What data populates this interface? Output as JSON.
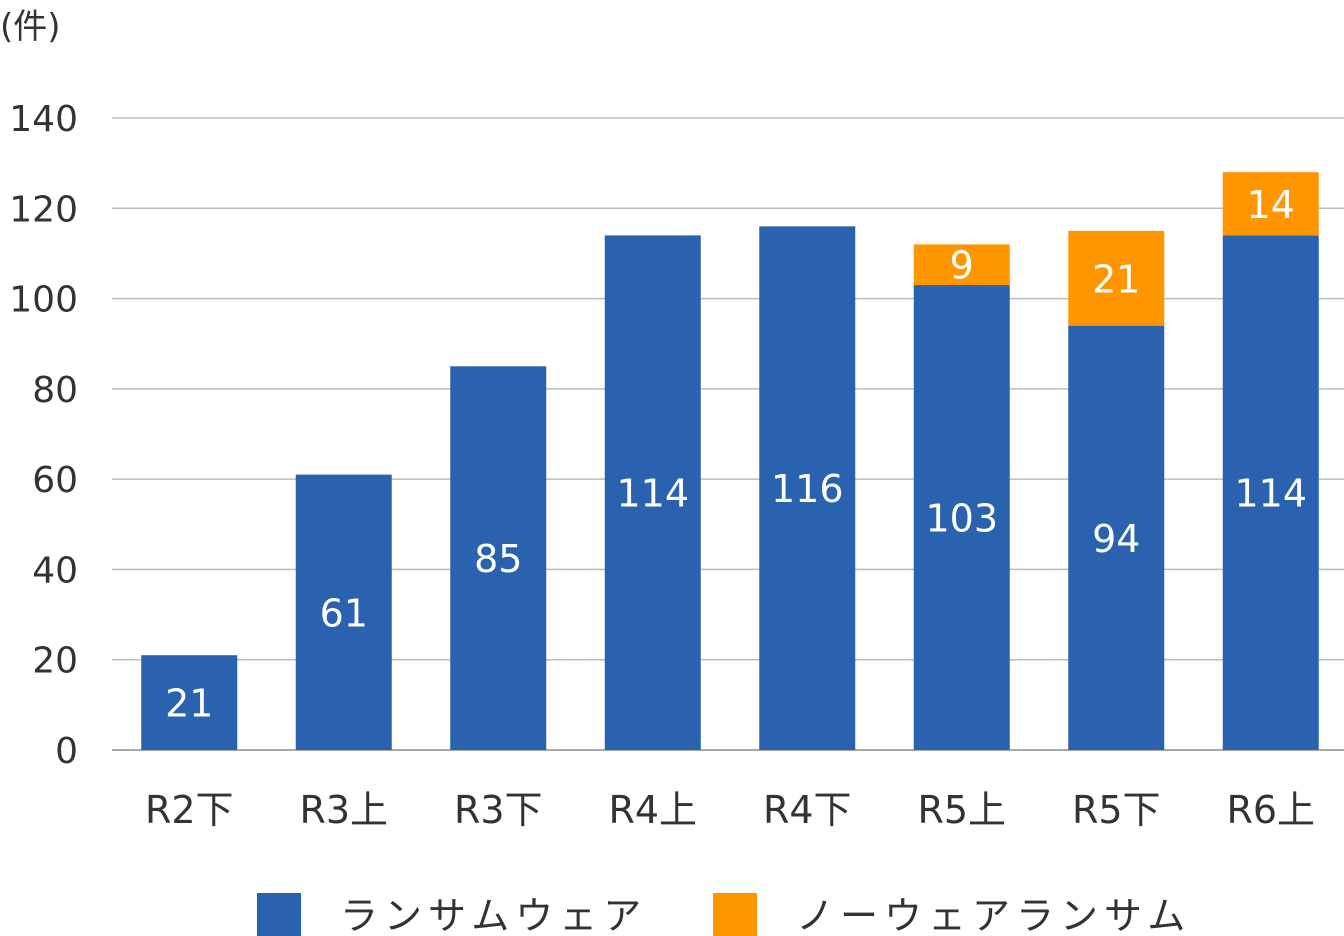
{
  "chart_data": {
    "type": "bar",
    "stacked": true,
    "unit_label": "(件)",
    "categories": [
      "R2下",
      "R3上",
      "R3下",
      "R4上",
      "R4下",
      "R5上",
      "R5下",
      "R6上"
    ],
    "series": [
      {
        "name": "ランサムウェア",
        "color": "#2a62b0",
        "values": [
          21,
          61,
          85,
          114,
          116,
          103,
          94,
          114
        ]
      },
      {
        "name": "ノーウェアランサム",
        "color": "#ff9600",
        "values": [
          0,
          0,
          0,
          0,
          0,
          9,
          21,
          14
        ]
      }
    ],
    "ylim": [
      0,
      140
    ],
    "yticks": [
      0,
      20,
      40,
      60,
      80,
      100,
      120,
      140
    ],
    "grid": true,
    "legend": "bottom",
    "title": "",
    "xlabel": "",
    "ylabel": "(件)"
  }
}
